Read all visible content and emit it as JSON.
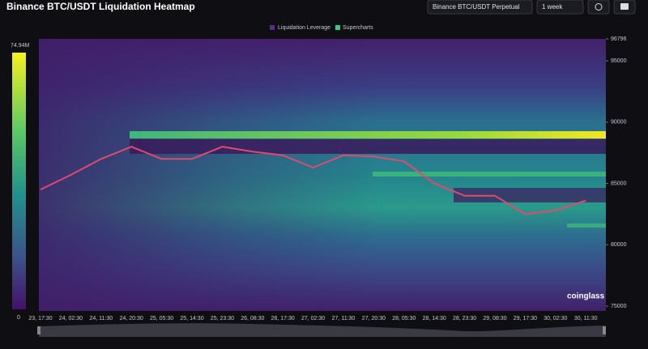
{
  "header": {
    "title": "Binance BTC/USDT Liquidation Heatmap",
    "exchange_select": "Binance BTC/USDT Perpetual",
    "range_select": "1 week"
  },
  "legend": [
    "Liquidation Leverage",
    "Supercharts"
  ],
  "colorbar": {
    "max_label": "74.94M",
    "min_label": "0"
  },
  "chart_data": {
    "type": "line",
    "categories": [
      "23, 17:30",
      "24, 02:30",
      "24, 11:30",
      "24, 20:30",
      "25, 05:30",
      "25, 14:30",
      "25, 23:30",
      "26, 08:30",
      "26, 17:30",
      "27, 02:30",
      "27, 11:30",
      "27, 20:30",
      "28, 05:30",
      "28, 14:30",
      "28, 23:30",
      "29, 08:30",
      "29, 17:30",
      "30, 02:30",
      "30, 11:30"
    ],
    "values": [
      84500,
      85700,
      87000,
      88000,
      87000,
      87000,
      88000,
      87600,
      87300,
      86300,
      87300,
      87200,
      86800,
      85000,
      84000,
      84000,
      82500,
      82800,
      83600
    ],
    "color": "#e04a6e",
    "ylim": [
      74600,
      96796
    ],
    "yticks": [
      96796,
      95000,
      90000,
      85000,
      80000,
      75000
    ]
  },
  "watermark": "coinglass"
}
